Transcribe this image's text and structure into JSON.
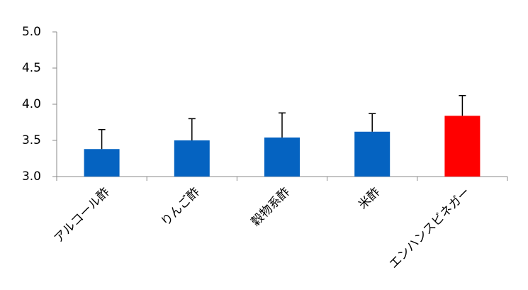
{
  "chart_data": {
    "type": "bar",
    "categories": [
      "アルコール酢",
      "りんご酢",
      "穀物系酢",
      "米酢",
      "エンハンスビネガー"
    ],
    "values": [
      3.38,
      3.5,
      3.54,
      3.62,
      3.84
    ],
    "errors": [
      0.27,
      0.3,
      0.34,
      0.25,
      0.28
    ],
    "colors": [
      "#0563c1",
      "#0563c1",
      "#0563c1",
      "#0563c1",
      "#ff0000"
    ],
    "ylim": [
      3.0,
      5.0
    ],
    "yticks": [
      {
        "value": 3.0,
        "label": "3.0"
      },
      {
        "value": 3.5,
        "label": "3.5"
      },
      {
        "value": 4.0,
        "label": "4.0"
      },
      {
        "value": 4.5,
        "label": "4.5"
      },
      {
        "value": 5.0,
        "label": "5.0"
      }
    ],
    "grid": false
  }
}
